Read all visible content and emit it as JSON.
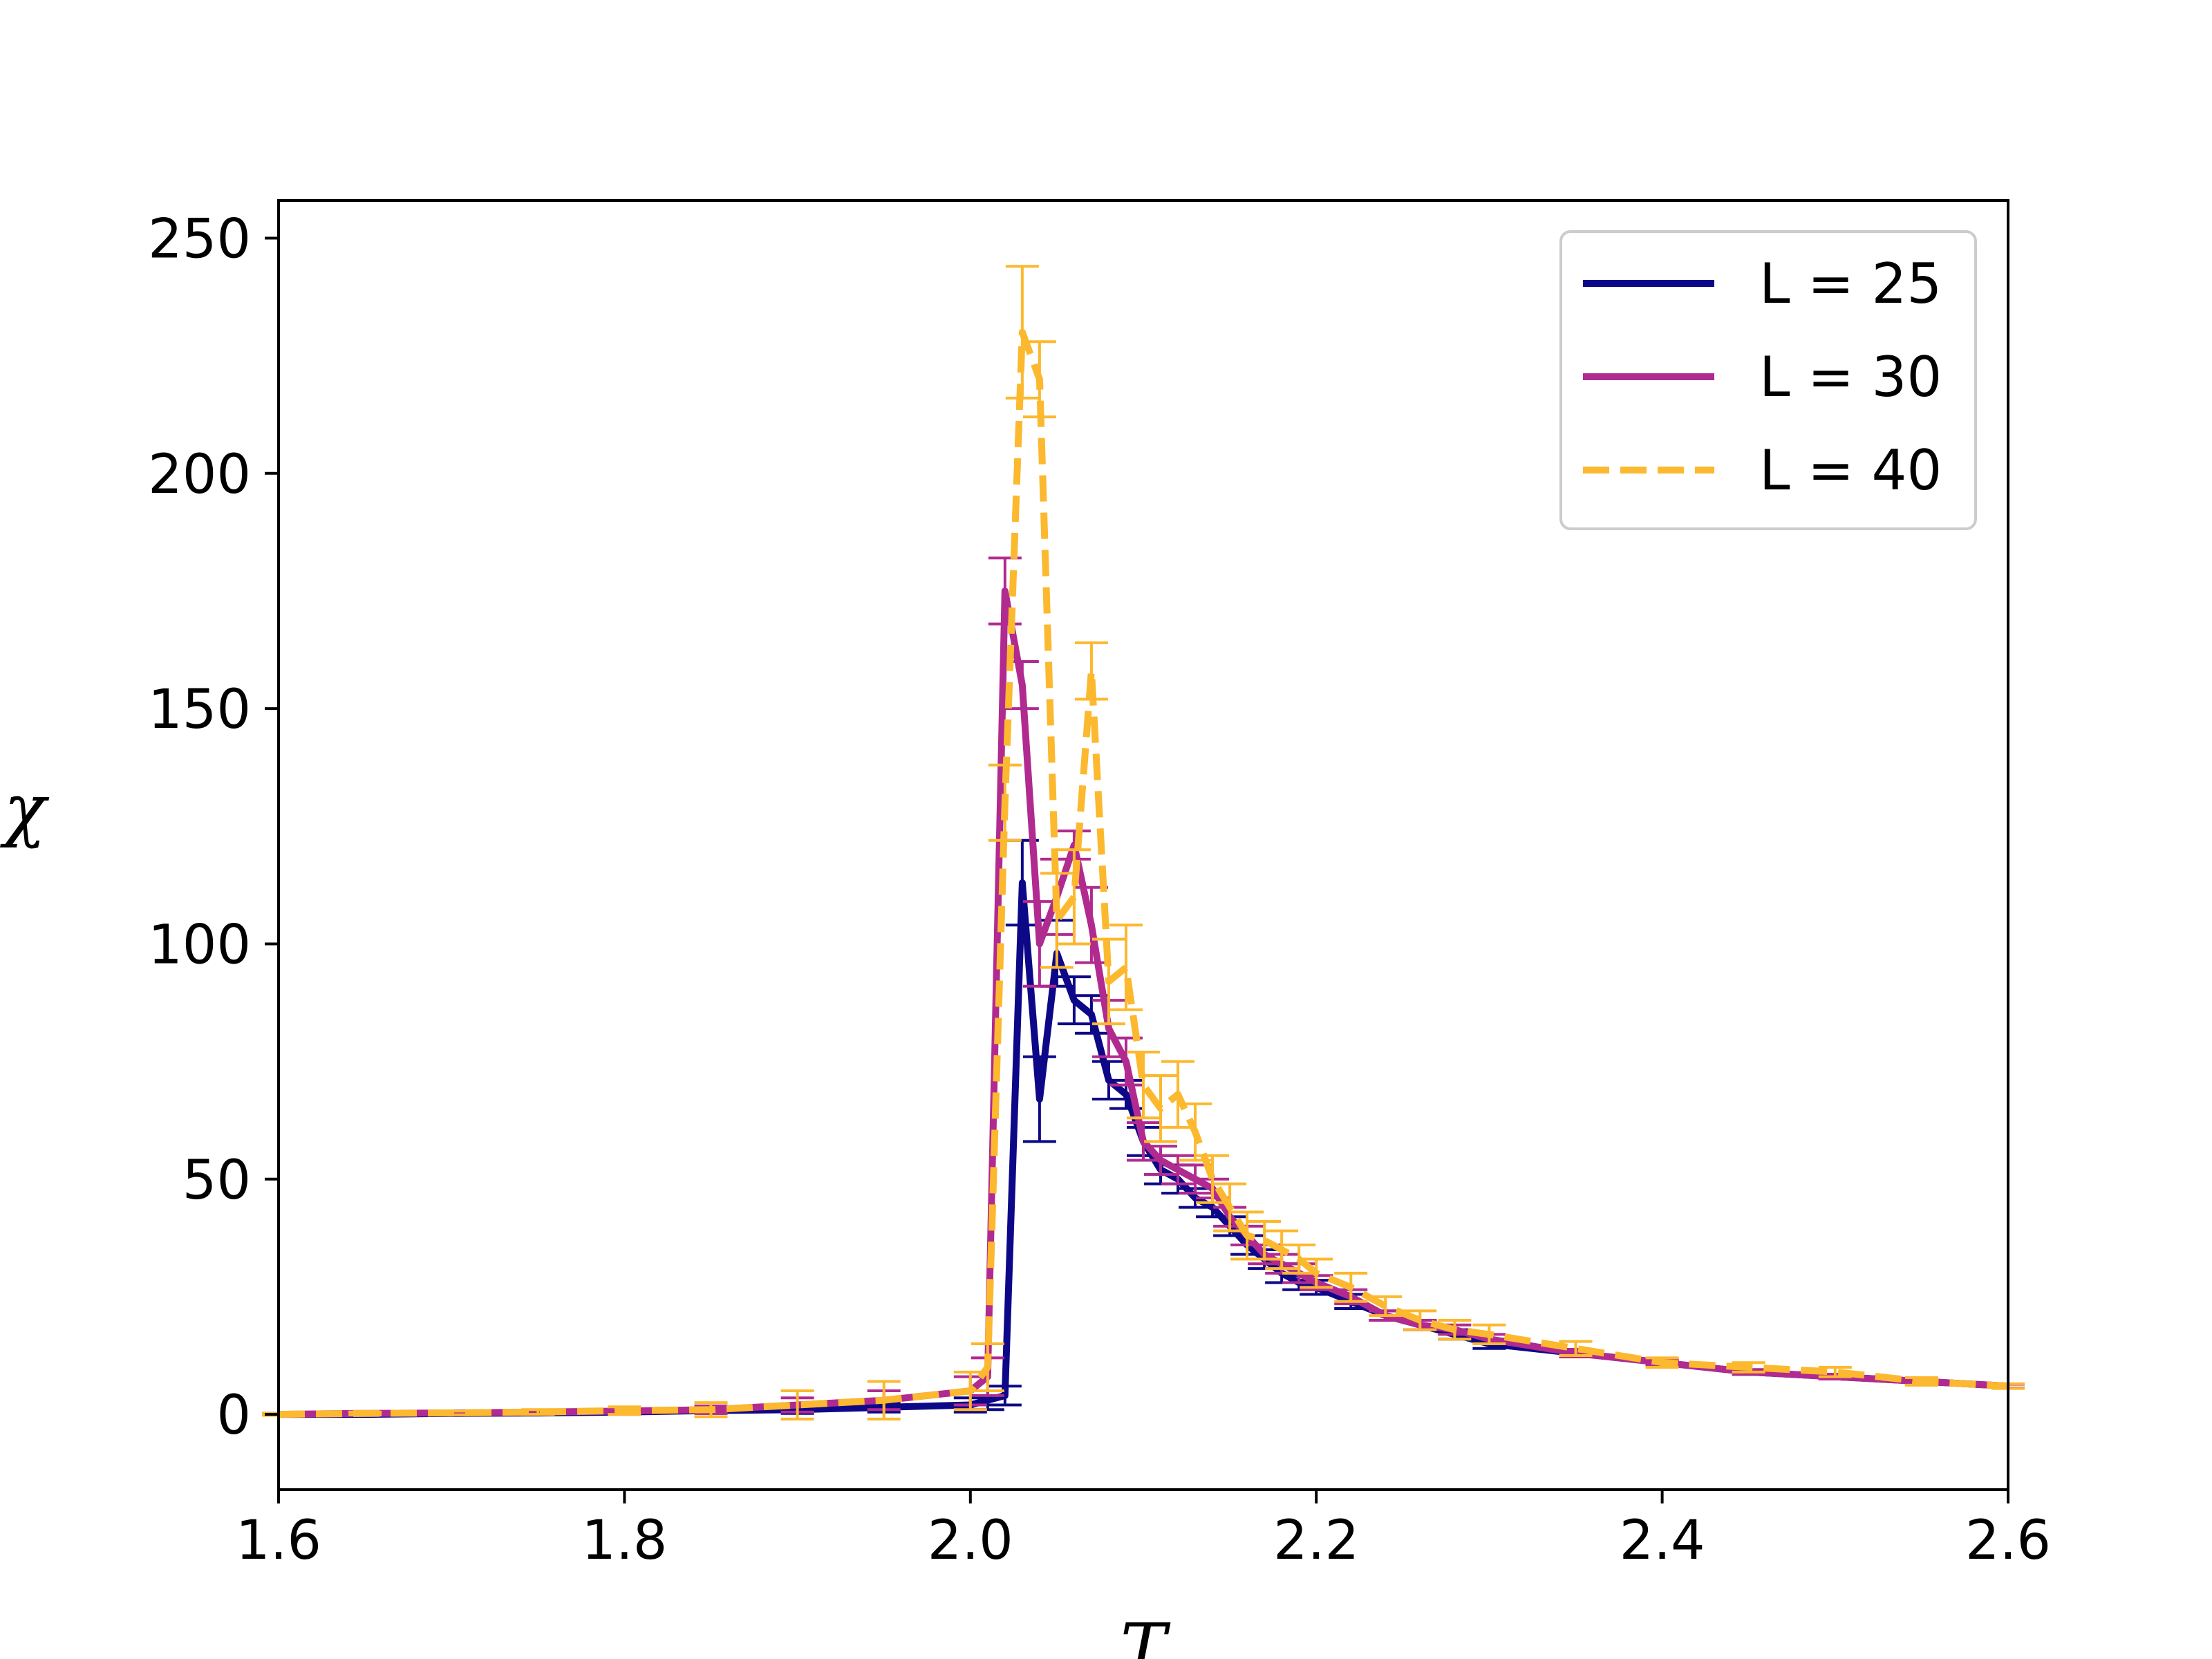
{
  "chart_data": {
    "type": "line",
    "title": "",
    "xlabel": "T",
    "ylabel": "χ",
    "xlim": [
      1.6,
      2.6
    ],
    "ylim": [
      -16,
      258
    ],
    "xticks": [
      "1.6",
      "1.8",
      "2.0",
      "2.2",
      "2.4",
      "2.6"
    ],
    "yticks": [
      "0",
      "50",
      "100",
      "150",
      "200",
      "250"
    ],
    "grid": false,
    "legend_position": "top-right",
    "series": [
      {
        "name": "L = 25",
        "legend_label": "L = 25",
        "color": "#0d0887",
        "dash": "solid",
        "x": [
          1.6,
          1.65,
          1.7,
          1.75,
          1.8,
          1.85,
          1.9,
          1.95,
          2.0,
          2.01,
          2.02,
          2.03,
          2.04,
          2.05,
          2.06,
          2.07,
          2.08,
          2.09,
          2.1,
          2.11,
          2.12,
          2.13,
          2.14,
          2.15,
          2.16,
          2.17,
          2.18,
          2.19,
          2.2,
          2.22,
          2.24,
          2.26,
          2.28,
          2.3,
          2.35,
          2.4,
          2.45,
          2.5,
          2.55,
          2.6
        ],
        "y": [
          0,
          0,
          0.2,
          0.3,
          0.5,
          0.8,
          1,
          1.5,
          2,
          3,
          4,
          113,
          67,
          98,
          88,
          85,
          71,
          68,
          58,
          52,
          50,
          46,
          44,
          40,
          36,
          33,
          30,
          28,
          27,
          24,
          21,
          19,
          17,
          15,
          13,
          11,
          9,
          8,
          7,
          6
        ],
        "yerr": [
          0.2,
          0.2,
          0.3,
          0.3,
          0.5,
          0.6,
          0.8,
          1,
          1.5,
          2,
          2,
          9,
          9,
          7,
          5,
          4,
          4,
          3,
          3,
          3,
          3,
          2,
          2,
          2,
          2,
          2,
          2,
          1.5,
          1.5,
          1.5,
          1,
          1,
          1,
          1,
          0.8,
          0.6,
          0.5,
          0.5,
          0.4,
          0.4
        ]
      },
      {
        "name": "L = 30",
        "legend_label": "L = 30",
        "color": "#b12a90",
        "dash": "solid",
        "x": [
          1.6,
          1.65,
          1.7,
          1.75,
          1.8,
          1.85,
          1.9,
          1.95,
          2.0,
          2.01,
          2.02,
          2.03,
          2.04,
          2.05,
          2.06,
          2.07,
          2.08,
          2.09,
          2.1,
          2.11,
          2.12,
          2.13,
          2.14,
          2.15,
          2.16,
          2.17,
          2.18,
          2.19,
          2.2,
          2.22,
          2.24,
          2.26,
          2.28,
          2.3,
          2.35,
          2.4,
          2.45,
          2.5,
          2.55,
          2.6
        ],
        "y": [
          0,
          0.2,
          0.3,
          0.5,
          0.7,
          1,
          2,
          3,
          5,
          8,
          175,
          155,
          100,
          110,
          121,
          104,
          82,
          75,
          58,
          54,
          52,
          50,
          48,
          42,
          38,
          34,
          32,
          30,
          28,
          25,
          21,
          19,
          18,
          16,
          13,
          11,
          9,
          8,
          7,
          6
        ],
        "yerr": [
          0.2,
          0.2,
          0.3,
          0.4,
          0.5,
          0.8,
          1.5,
          2,
          3,
          4,
          7,
          5,
          9,
          8,
          3,
          8,
          6,
          5,
          4,
          3,
          3,
          3,
          2,
          2,
          2,
          2,
          2,
          2,
          1.5,
          1.5,
          1,
          1,
          1,
          1,
          0.8,
          0.6,
          0.5,
          0.5,
          0.4,
          0.4
        ]
      },
      {
        "name": "L = 40",
        "legend_label": "L = 40",
        "color": "#fcb82e",
        "dash": "dashed",
        "x": [
          1.6,
          1.65,
          1.7,
          1.75,
          1.8,
          1.85,
          1.9,
          1.95,
          2.0,
          2.01,
          2.02,
          2.03,
          2.04,
          2.05,
          2.06,
          2.07,
          2.08,
          2.09,
          2.1,
          2.11,
          2.12,
          2.13,
          2.14,
          2.15,
          2.16,
          2.17,
          2.18,
          2.19,
          2.2,
          2.22,
          2.24,
          2.26,
          2.28,
          2.3,
          2.35,
          2.4,
          2.45,
          2.5,
          2.55,
          2.6
        ],
        "y": [
          0,
          0.2,
          0.3,
          0.5,
          0.8,
          1,
          2,
          3,
          5,
          10,
          130,
          230,
          220,
          105,
          110,
          158,
          92,
          95,
          70,
          65,
          68,
          60,
          50,
          44,
          38,
          37,
          35,
          33,
          30,
          27,
          23,
          20,
          18,
          17,
          14,
          11,
          10,
          9,
          7,
          6
        ],
        "yerr": [
          0.2,
          0.3,
          0.4,
          0.5,
          0.8,
          1.5,
          3,
          4,
          4,
          5,
          8,
          14,
          8,
          10,
          10,
          6,
          9,
          9,
          7,
          7,
          7,
          6,
          5,
          5,
          5,
          4,
          4,
          3,
          3,
          3,
          2,
          2,
          2,
          2,
          1.5,
          1,
          1,
          1,
          0.8,
          0.5
        ]
      }
    ]
  }
}
